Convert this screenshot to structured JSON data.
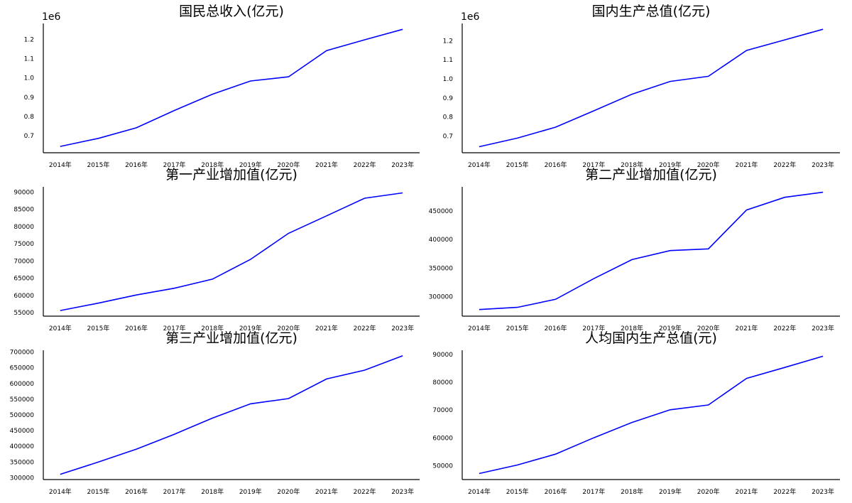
{
  "chart_data": [
    {
      "type": "line",
      "title": "国民总收入(亿元)",
      "x": [
        "2014年",
        "2015年",
        "2016年",
        "2017年",
        "2018年",
        "2019年",
        "2020年",
        "2021年",
        "2022年",
        "2023年"
      ],
      "series": [
        {
          "values": [
            644791,
            686450,
            741140,
            830945,
            915243,
            983751,
            1005451,
            1141231,
            1197250,
            1251297
          ],
          "color": "#0000ff"
        }
      ],
      "ylim": [
        612000,
        1282000
      ],
      "yticks": [
        700000,
        800000,
        900000,
        1000000,
        1100000,
        1200000
      ],
      "ytick_labels": [
        "0.7",
        "0.8",
        "0.9",
        "1.0",
        "1.1",
        "1.2"
      ],
      "offset_label": "1e6",
      "grid": false
    },
    {
      "type": "line",
      "title": "国内生产总值(亿元)",
      "x": [
        "2014年",
        "2015年",
        "2016年",
        "2017年",
        "2018年",
        "2019年",
        "2020年",
        "2021年",
        "2022年",
        "2023年"
      ],
      "series": [
        {
          "values": [
            643563,
            688858,
            746395,
            832036,
            919281,
            986515,
            1013567,
            1149237,
            1204724,
            1260582
          ],
          "color": "#0000ff"
        }
      ],
      "ylim": [
        612000,
        1291000
      ],
      "yticks": [
        700000,
        800000,
        900000,
        1000000,
        1100000,
        1200000
      ],
      "ytick_labels": [
        "0.7",
        "0.8",
        "0.9",
        "1.0",
        "1.1",
        "1.2"
      ],
      "offset_label": "1e6",
      "grid": false
    },
    {
      "type": "line",
      "title": "第一产业增加值(亿元)",
      "x": [
        "2014年",
        "2015年",
        "2016年",
        "2017年",
        "2018年",
        "2019年",
        "2020年",
        "2021年",
        "2022年",
        "2023年"
      ],
      "series": [
        {
          "values": [
            55626,
            57774,
            60139,
            62100,
            64745,
            70467,
            78031,
            83086,
            88207,
            89755
          ],
          "color": "#0000ff"
        }
      ],
      "ylim": [
        54000,
        91500
      ],
      "yticks": [
        55000,
        60000,
        65000,
        70000,
        75000,
        80000,
        85000,
        90000
      ],
      "ytick_labels": [
        "55000",
        "60000",
        "65000",
        "70000",
        "75000",
        "80000",
        "85000",
        "90000"
      ],
      "grid": false
    },
    {
      "type": "line",
      "title": "第二产业增加值(亿元)",
      "x": [
        "2014年",
        "2015年",
        "2016年",
        "2017年",
        "2018年",
        "2019年",
        "2020年",
        "2021年",
        "2022年",
        "2023年"
      ],
      "series": [
        {
          "values": [
            277572,
            281338,
            295428,
            331580,
            364835,
            380671,
            383562,
            451544,
            473790,
            482589
          ],
          "color": "#0000ff"
        }
      ],
      "ylim": [
        266000,
        492000
      ],
      "yticks": [
        300000,
        350000,
        400000,
        450000
      ],
      "ytick_labels": [
        "300000",
        "350000",
        "400000",
        "450000"
      ],
      "grid": false
    },
    {
      "type": "line",
      "title": "第三产业增加值(亿元)",
      "x": [
        "2014年",
        "2015年",
        "2016年",
        "2017年",
        "2018年",
        "2019年",
        "2020年",
        "2021年",
        "2022年",
        "2023年"
      ],
      "series": [
        {
          "values": [
            310654,
            349745,
            390828,
            438356,
            489701,
            535371,
            551974,
            614476,
            642727,
            688238
          ],
          "color": "#0000ff"
        }
      ],
      "ylim": [
        294000,
        706000
      ],
      "yticks": [
        300000,
        350000,
        400000,
        450000,
        500000,
        550000,
        600000,
        650000,
        700000
      ],
      "ytick_labels": [
        "300000",
        "350000",
        "400000",
        "450000",
        "500000",
        "550000",
        "600000",
        "650000",
        "700000"
      ],
      "grid": false
    },
    {
      "type": "line",
      "title": "人均国内生产总值(元)",
      "x": [
        "2014年",
        "2015年",
        "2016年",
        "2017年",
        "2018年",
        "2019年",
        "2020年",
        "2021年",
        "2022年",
        "2023年"
      ],
      "series": [
        {
          "values": [
            47173,
            50237,
            54139,
            60014,
            65534,
            70078,
            71828,
            81370,
            85310,
            89358
          ],
          "color": "#0000ff"
        }
      ],
      "ylim": [
        45000,
        91500
      ],
      "yticks": [
        50000,
        60000,
        70000,
        80000,
        90000
      ],
      "ytick_labels": [
        "50000",
        "60000",
        "70000",
        "80000",
        "90000"
      ],
      "grid": false
    }
  ]
}
